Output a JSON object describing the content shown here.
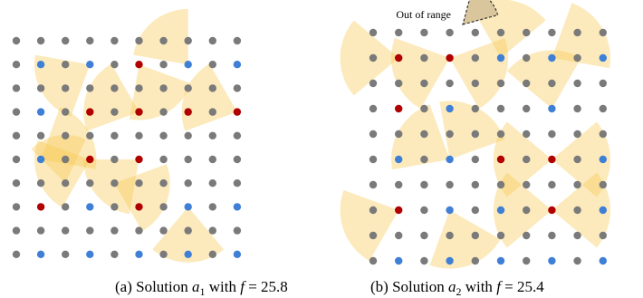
{
  "colors": {
    "gray": "#7a7a7a",
    "red": "#b00000",
    "blue": "#3f7fd6",
    "sector": "#f7c850",
    "sector_opacity": 0.38,
    "out_of_range_fill": "#d9c69c"
  },
  "grid": {
    "rows": 10,
    "cols": 10
  },
  "panels": [
    {
      "id": "a",
      "caption": {
        "prefix": "(a) Solution ",
        "var": "a",
        "sub": "1",
        "mid": " with ",
        "fvar": "f",
        "eq": " = 25.8"
      },
      "blue": [
        [
          1,
          1
        ],
        [
          1,
          3
        ],
        [
          1,
          7
        ],
        [
          1,
          9
        ],
        [
          3,
          1
        ],
        [
          5,
          1
        ],
        [
          7,
          3
        ],
        [
          7,
          5
        ],
        [
          7,
          7
        ],
        [
          7,
          9
        ],
        [
          9,
          1
        ],
        [
          9,
          3
        ],
        [
          9,
          5
        ],
        [
          9,
          7
        ],
        [
          9,
          9
        ]
      ],
      "red": [
        [
          1,
          5
        ],
        [
          3,
          3
        ],
        [
          3,
          5
        ],
        [
          3,
          7
        ],
        [
          3,
          9
        ],
        [
          5,
          3
        ],
        [
          5,
          5
        ],
        [
          7,
          1
        ],
        [
          7,
          5
        ]
      ],
      "sectors": [
        {
          "r": 1,
          "c": 3,
          "dir": 210,
          "span": 80,
          "len": 2.3
        },
        {
          "r": 1,
          "c": 5,
          "dir": 300,
          "span": 80,
          "len": 2.3
        },
        {
          "r": 1,
          "c": 7,
          "dir": 130,
          "span": 80,
          "len": 2.3
        },
        {
          "r": 3,
          "c": 5,
          "dir": 160,
          "span": 80,
          "len": 2.3
        },
        {
          "r": 3,
          "c": 9,
          "dir": 160,
          "span": 80,
          "len": 2.3
        },
        {
          "r": 5,
          "c": 1,
          "dir": 30,
          "span": 80,
          "len": 2.3
        },
        {
          "r": 5,
          "c": 3,
          "dir": 200,
          "span": 80,
          "len": 2.3
        },
        {
          "r": 5,
          "c": 5,
          "dir": 220,
          "span": 80,
          "len": 2.3
        },
        {
          "r": 6,
          "c": 4,
          "dir": 340,
          "span": 80,
          "len": 2.3
        },
        {
          "r": 7,
          "c": 7,
          "dir": 270,
          "span": 80,
          "len": 2.3
        },
        {
          "r": 6,
          "c": 2,
          "dir": 100,
          "span": 70,
          "len": 2.0
        }
      ]
    },
    {
      "id": "b",
      "caption": {
        "prefix": "(b) Solution ",
        "var": "a",
        "sub": "2",
        "mid": " with ",
        "fvar": "f",
        "eq": " = 25.4"
      },
      "out_of_range_label": "Out of range",
      "blue": [
        [
          1,
          5
        ],
        [
          1,
          7
        ],
        [
          1,
          9
        ],
        [
          3,
          3
        ],
        [
          3,
          7
        ],
        [
          5,
          1
        ],
        [
          5,
          3
        ],
        [
          5,
          7
        ],
        [
          5,
          9
        ],
        [
          7,
          3
        ],
        [
          7,
          5
        ],
        [
          7,
          7
        ],
        [
          7,
          9
        ],
        [
          9,
          1
        ],
        [
          9,
          3
        ],
        [
          9,
          5
        ],
        [
          9,
          7
        ],
        [
          9,
          9
        ]
      ],
      "red": [
        [
          1,
          1
        ],
        [
          1,
          3
        ],
        [
          3,
          1
        ],
        [
          5,
          5
        ],
        [
          5,
          7
        ],
        [
          7,
          1
        ],
        [
          7,
          7
        ]
      ],
      "sectors": [
        {
          "r": 1,
          "c": 1,
          "dir": 180,
          "span": 80,
          "len": 2.3
        },
        {
          "r": 1,
          "c": 3,
          "dir": 340,
          "span": 80,
          "len": 2.3
        },
        {
          "r": 1,
          "c": 3,
          "dir": 200,
          "span": 80,
          "len": 2.3
        },
        {
          "r": 1,
          "c": 5,
          "dir": 80,
          "span": 80,
          "len": 2.3
        },
        {
          "r": 1,
          "c": 7,
          "dir": 30,
          "span": 80,
          "len": 2.3
        },
        {
          "r": 3,
          "c": 7,
          "dir": 100,
          "span": 80,
          "len": 2.3
        },
        {
          "r": 5,
          "c": 3,
          "dir": 150,
          "span": 80,
          "len": 2.3
        },
        {
          "r": 5,
          "c": 3,
          "dir": 60,
          "span": 80,
          "len": 2.3
        },
        {
          "r": 5,
          "c": 7,
          "dir": 0,
          "span": 80,
          "len": 2.3
        },
        {
          "r": 5,
          "c": 7,
          "dir": 180,
          "span": 80,
          "len": 2.3
        },
        {
          "r": 7,
          "c": 1,
          "dir": 200,
          "span": 80,
          "len": 2.3
        },
        {
          "r": 7,
          "c": 3,
          "dir": 290,
          "span": 80,
          "len": 2.3
        },
        {
          "r": 7,
          "c": 7,
          "dir": 0,
          "span": 80,
          "len": 2.3
        },
        {
          "r": 7,
          "c": 7,
          "dir": 180,
          "span": 80,
          "len": 2.3
        }
      ]
    }
  ]
}
